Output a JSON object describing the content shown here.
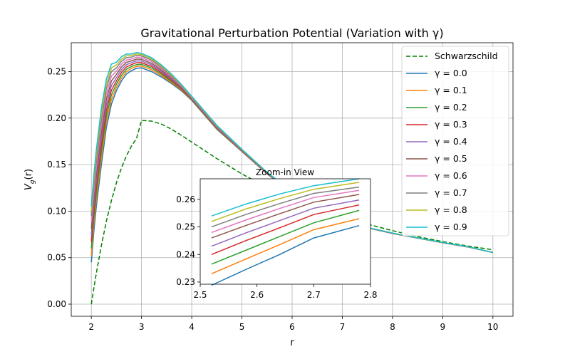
{
  "chart_data": [
    {
      "type": "line",
      "title": "Gravitational Perturbation Potential (Variation with γ)",
      "xlabel": "r",
      "ylabel_base": "V",
      "ylabel_sub": "g",
      "ylabel_arg": "(r)",
      "xlim": [
        1.6,
        10.4
      ],
      "ylim": [
        -0.013,
        0.281
      ],
      "grid": true,
      "x_ticks": [
        2,
        3,
        4,
        5,
        6,
        7,
        8,
        9,
        10
      ],
      "x_tick_labels": [
        "2",
        "3",
        "4",
        "5",
        "6",
        "7",
        "8",
        "9",
        "10"
      ],
      "y_ticks": [
        0.0,
        0.05,
        0.1,
        0.15,
        0.2,
        0.25
      ],
      "y_tick_labels": [
        "0.00",
        "0.05",
        "0.10",
        "0.15",
        "0.20",
        "0.25"
      ],
      "legend_position": "top-right",
      "x_sample": [
        2.0,
        2.05,
        2.1,
        2.2,
        2.3,
        2.4,
        2.5,
        2.6,
        2.7,
        2.8,
        2.9,
        3.0,
        3.2,
        3.4,
        3.6,
        3.8,
        4.0,
        4.5,
        5.0,
        5.5,
        6.0,
        6.5,
        7.0,
        7.5,
        8.0,
        8.5,
        9.0,
        9.5,
        10.0
      ],
      "series": [
        {
          "name": "Schwarzschild",
          "legend_label": "Schwarzschild",
          "color": "#008000",
          "dash": "dashed",
          "values": [
            0.0,
            0.0171,
            0.0333,
            0.063,
            0.0891,
            0.1115,
            0.1305,
            0.1465,
            0.1595,
            0.17,
            0.178,
            0.1975,
            0.1968,
            0.1935,
            0.188,
            0.1813,
            0.1742,
            0.1565,
            0.14,
            0.1257,
            0.1136,
            0.103,
            0.094,
            0.086,
            0.079,
            0.0727,
            0.0672,
            0.0625,
            0.0585
          ]
        },
        {
          "name": "γ = 0.0",
          "legend_label": "γ = 0.0",
          "color": "#1f77b4",
          "dash": "solid",
          "values": [
            0.045,
            0.078,
            0.105,
            0.15,
            0.19,
            0.215,
            0.2295,
            0.24,
            0.2475,
            0.251,
            0.2535,
            0.254,
            0.25,
            0.244,
            0.237,
            0.229,
            0.219,
            0.188,
            0.164,
            0.14,
            0.12,
            0.102,
            0.09,
            0.082,
            0.076,
            0.071,
            0.066,
            0.0615,
            0.0555
          ]
        },
        {
          "name": "γ = 0.1",
          "legend_label": "γ = 0.1",
          "color": "#ff7f0e",
          "dash": "solid",
          "values": [
            0.052,
            0.085,
            0.112,
            0.157,
            0.196,
            0.22,
            0.233,
            0.243,
            0.25,
            0.2535,
            0.2555,
            0.256,
            0.252,
            0.2455,
            0.238,
            0.2298,
            0.2195,
            0.1885,
            0.1643,
            0.1402,
            0.1201,
            0.1021,
            0.0901,
            0.0821,
            0.076,
            0.071,
            0.066,
            0.0615,
            0.0555
          ]
        },
        {
          "name": "γ = 0.2",
          "legend_label": "γ = 0.2",
          "color": "#2ca02c",
          "dash": "solid",
          "values": [
            0.06,
            0.092,
            0.119,
            0.164,
            0.202,
            0.225,
            0.2365,
            0.246,
            0.2525,
            0.2555,
            0.2575,
            0.2578,
            0.2538,
            0.247,
            0.2392,
            0.2306,
            0.22,
            0.189,
            0.1646,
            0.1404,
            0.1202,
            0.1022,
            0.0902,
            0.0822,
            0.0761,
            0.071,
            0.066,
            0.0615,
            0.0555
          ]
        },
        {
          "name": "γ = 0.3",
          "legend_label": "γ = 0.3",
          "color": "#d62728",
          "dash": "solid",
          "values": [
            0.067,
            0.099,
            0.126,
            0.171,
            0.208,
            0.23,
            0.24,
            0.249,
            0.255,
            0.2575,
            0.2595,
            0.2596,
            0.2555,
            0.2485,
            0.2404,
            0.2314,
            0.2205,
            0.1895,
            0.1649,
            0.1406,
            0.1203,
            0.1023,
            0.0903,
            0.0822,
            0.0761,
            0.0711,
            0.0661,
            0.0615,
            0.0555
          ]
        },
        {
          "name": "γ = 0.4",
          "legend_label": "γ = 0.4",
          "color": "#9467bd",
          "dash": "solid",
          "values": [
            0.074,
            0.106,
            0.133,
            0.178,
            0.214,
            0.235,
            0.2435,
            0.252,
            0.2575,
            0.2595,
            0.2615,
            0.2614,
            0.2572,
            0.25,
            0.2416,
            0.2322,
            0.221,
            0.19,
            0.1652,
            0.1408,
            0.1204,
            0.1024,
            0.0904,
            0.0823,
            0.0762,
            0.0711,
            0.0661,
            0.0616,
            0.0555
          ]
        },
        {
          "name": "γ = 0.5",
          "legend_label": "γ = 0.5",
          "color": "#8c564b",
          "dash": "solid",
          "values": [
            0.081,
            0.113,
            0.14,
            0.185,
            0.22,
            0.24,
            0.247,
            0.255,
            0.26,
            0.2615,
            0.2635,
            0.2632,
            0.2589,
            0.2515,
            0.2428,
            0.233,
            0.2215,
            0.1905,
            0.1655,
            0.141,
            0.1205,
            0.1025,
            0.0905,
            0.0823,
            0.0762,
            0.0711,
            0.0661,
            0.0616,
            0.0555
          ]
        },
        {
          "name": "γ = 0.6",
          "legend_label": "γ = 0.6",
          "color": "#e377c2",
          "dash": "solid",
          "values": [
            0.088,
            0.12,
            0.147,
            0.192,
            0.226,
            0.245,
            0.2505,
            0.258,
            0.2625,
            0.2635,
            0.2655,
            0.265,
            0.2606,
            0.253,
            0.244,
            0.2338,
            0.222,
            0.191,
            0.1658,
            0.1412,
            0.1206,
            0.1026,
            0.0906,
            0.0824,
            0.0763,
            0.0712,
            0.0662,
            0.0616,
            0.0555
          ]
        },
        {
          "name": "γ = 0.7",
          "legend_label": "γ = 0.7",
          "color": "#7f7f7f",
          "dash": "solid",
          "values": [
            0.095,
            0.127,
            0.154,
            0.199,
            0.232,
            0.25,
            0.254,
            0.261,
            0.265,
            0.2655,
            0.2675,
            0.2668,
            0.2623,
            0.2545,
            0.2452,
            0.2346,
            0.2225,
            0.1915,
            0.1661,
            0.1414,
            0.1207,
            0.1027,
            0.0907,
            0.0824,
            0.0763,
            0.0712,
            0.0662,
            0.0617,
            0.0555
          ]
        },
        {
          "name": "γ = 0.8",
          "legend_label": "γ = 0.8",
          "color": "#bcbd22",
          "dash": "solid",
          "values": [
            0.1,
            0.133,
            0.16,
            0.205,
            0.237,
            0.254,
            0.257,
            0.2635,
            0.267,
            0.2672,
            0.269,
            0.2682,
            0.2637,
            0.2557,
            0.2462,
            0.2352,
            0.223,
            0.1919,
            0.1663,
            0.1416,
            0.1208,
            0.1028,
            0.0908,
            0.0825,
            0.0764,
            0.0712,
            0.0662,
            0.0617,
            0.0555
          ]
        },
        {
          "name": "γ = 0.9",
          "legend_label": "γ = 0.9",
          "color": "#17becf",
          "dash": "solid",
          "values": [
            0.105,
            0.139,
            0.166,
            0.211,
            0.242,
            0.258,
            0.26,
            0.266,
            0.269,
            0.2688,
            0.2705,
            0.2695,
            0.265,
            0.257,
            0.2472,
            0.2358,
            0.2235,
            0.1923,
            0.1665,
            0.1418,
            0.1209,
            0.1029,
            0.0909,
            0.0825,
            0.0764,
            0.0713,
            0.0663,
            0.0618,
            0.0555
          ]
        }
      ]
    },
    {
      "type": "line",
      "title": "Zoom-in View",
      "xlim": [
        2.5,
        2.8
      ],
      "ylim": [
        0.2292,
        0.2675
      ],
      "x_ticks": [
        2.5,
        2.6,
        2.7,
        2.8
      ],
      "x_tick_labels": [
        "2.5",
        "2.6",
        "2.7",
        "2.8"
      ],
      "y_ticks": [
        0.23,
        0.24,
        0.25,
        0.26
      ],
      "y_tick_labels": [
        "0.23",
        "0.24",
        "0.25",
        "0.26"
      ],
      "x_sample": [
        2.52,
        2.58,
        2.64,
        2.7,
        2.78
      ],
      "series": [
        {
          "name": "γ = 0.0",
          "color": "#1f77b4",
          "values": [
            0.2288,
            0.2345,
            0.24,
            0.246,
            0.2505
          ]
        },
        {
          "name": "γ = 0.1",
          "color": "#ff7f0e",
          "values": [
            0.233,
            0.2383,
            0.2436,
            0.249,
            0.253
          ]
        },
        {
          "name": "γ = 0.2",
          "color": "#2ca02c",
          "values": [
            0.2365,
            0.2415,
            0.2465,
            0.2515,
            0.256
          ]
        },
        {
          "name": "γ = 0.3",
          "color": "#d62728",
          "values": [
            0.24,
            0.245,
            0.2497,
            0.2545,
            0.258
          ]
        },
        {
          "name": "γ = 0.4",
          "color": "#9467bd",
          "values": [
            0.243,
            0.2478,
            0.2523,
            0.2568,
            0.2598
          ]
        },
        {
          "name": "γ = 0.5",
          "color": "#8c564b",
          "values": [
            0.246,
            0.2505,
            0.2548,
            0.259,
            0.2618
          ]
        },
        {
          "name": "γ = 0.6",
          "color": "#e377c2",
          "values": [
            0.248,
            0.2525,
            0.2567,
            0.2607,
            0.2633
          ]
        },
        {
          "name": "γ = 0.7",
          "color": "#7f7f7f",
          "values": [
            0.25,
            0.2545,
            0.2585,
            0.2622,
            0.2645
          ]
        },
        {
          "name": "γ = 0.8",
          "color": "#bcbd22",
          "values": [
            0.252,
            0.2565,
            0.2603,
            0.2637,
            0.2662
          ]
        },
        {
          "name": "γ = 0.9",
          "color": "#17becf",
          "values": [
            0.254,
            0.2583,
            0.262,
            0.265,
            0.2675
          ]
        }
      ]
    }
  ]
}
